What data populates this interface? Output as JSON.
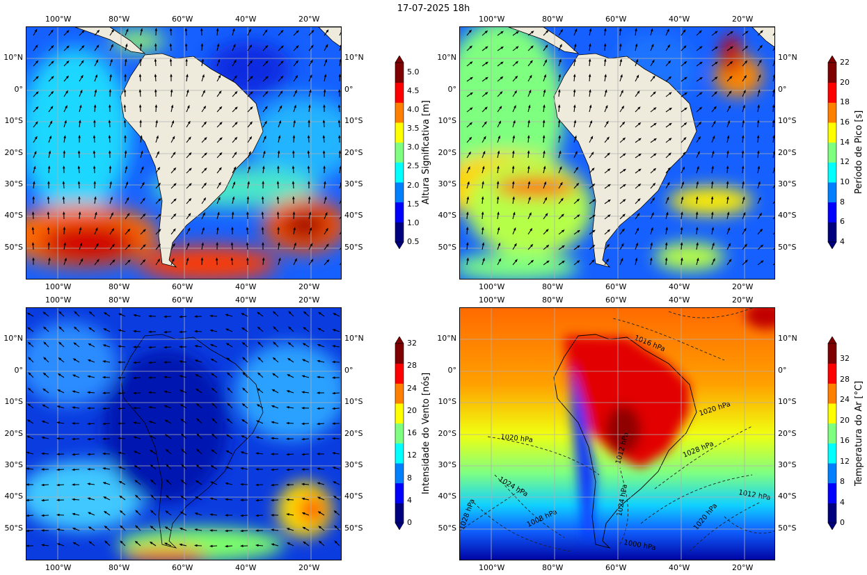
{
  "title": "17-07-2025 18h",
  "lon_ticks": [
    "100°W",
    "80°W",
    "60°W",
    "40°W",
    "20°W"
  ],
  "lat_ticks": [
    "10°N",
    "0°",
    "10°S",
    "20°S",
    "30°S",
    "40°S",
    "50°S"
  ],
  "panels": [
    {
      "id": "hs",
      "colorbar_label": "Altura Significativa [m]",
      "colorbar_ticks": [
        "0.5",
        "1.0",
        "1.5",
        "2.0",
        "2.5",
        "3.0",
        "3.5",
        "4.0",
        "4.5",
        "5.0"
      ],
      "colorbar_range": [
        0.5,
        5.25
      ]
    },
    {
      "id": "tp",
      "colorbar_label": "Período de Pico [s]",
      "colorbar_ticks": [
        "4",
        "6",
        "8",
        "10",
        "12",
        "14",
        "16",
        "18",
        "20",
        "22"
      ],
      "colorbar_range": [
        4,
        22
      ]
    },
    {
      "id": "wind",
      "colorbar_label": "Intensidade do Vento [nós]",
      "colorbar_ticks": [
        "0",
        "4",
        "8",
        "12",
        "16",
        "20",
        "24",
        "28",
        "32"
      ],
      "colorbar_range": [
        0,
        32
      ]
    },
    {
      "id": "temp",
      "colorbar_label": "Temperatura do Ar [°C]",
      "colorbar_ticks": [
        "0",
        "4",
        "8",
        "12",
        "16",
        "20",
        "24",
        "28",
        "32"
      ],
      "colorbar_range": [
        0,
        35
      ]
    }
  ],
  "isobar_labels": [
    "1016 hPa",
    "1020 hPa",
    "1020 hPa",
    "1028 hPa",
    "1024 hPa",
    "1012 hPa",
    "1012 hPa",
    "1024 hPa",
    "1020 hPa",
    "1008 hPa",
    "1000 hPa",
    "1028 hPa"
  ],
  "colors": {
    "land": "#efebdc",
    "jet": [
      "#00007f",
      "#0000ff",
      "#007fff",
      "#00ffff",
      "#7fff7f",
      "#ffff00",
      "#ff7f00",
      "#ff0000",
      "#7f0000"
    ]
  }
}
